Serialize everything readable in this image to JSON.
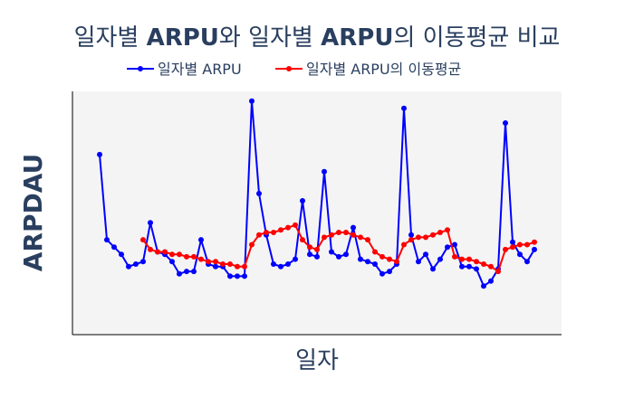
{
  "chart_data": {
    "type": "line",
    "title_parts": [
      {
        "text": "일자별 ",
        "bold": false
      },
      {
        "text": "ARPU",
        "bold": true
      },
      {
        "text": "와 일자별 ",
        "bold": false
      },
      {
        "text": "ARPU",
        "bold": true
      },
      {
        "text": "의 이동평균 비교",
        "bold": false
      }
    ],
    "xlabel": "일자",
    "ylabel": "ARPDAU",
    "grid": false,
    "legend_position": "top-center",
    "ylim": [
      0,
      100
    ],
    "series": [
      {
        "name": "일자별 ARPU",
        "color": "#0000ff",
        "x": [
          1,
          2,
          3,
          4,
          5,
          6,
          7,
          8,
          9,
          10,
          11,
          12,
          13,
          14,
          15,
          16,
          17,
          18,
          19,
          20,
          21,
          22,
          23,
          24,
          25,
          26,
          27,
          28,
          29,
          30,
          31,
          32,
          33,
          34,
          35,
          36,
          37,
          38,
          39,
          40,
          41,
          42,
          43,
          44,
          45,
          46,
          47,
          48,
          49,
          50,
          51,
          52,
          53,
          54,
          55,
          56,
          57,
          58,
          59,
          60,
          61
        ],
        "values": [
          74,
          39,
          36,
          33,
          28,
          29,
          30,
          46,
          34,
          33,
          30,
          25,
          26,
          26,
          39,
          29,
          28,
          28,
          24,
          24,
          24,
          96,
          58,
          41,
          29,
          28,
          29,
          31,
          55,
          33,
          32,
          67,
          34,
          32,
          33,
          44,
          31,
          30,
          29,
          25,
          26,
          29,
          93,
          41,
          30,
          33,
          27,
          31,
          36,
          37,
          28,
          28,
          27,
          20,
          22,
          27,
          87,
          38,
          33,
          30,
          35
        ],
        "y": [
          74,
          39,
          36,
          33,
          28,
          29,
          30,
          46,
          34,
          33,
          30,
          25,
          26,
          26,
          39,
          29,
          28,
          28,
          24,
          24,
          24,
          96,
          58,
          41,
          29,
          28,
          29,
          31,
          55,
          33,
          32,
          67,
          34,
          32,
          33,
          44,
          31,
          30,
          29,
          25,
          26,
          29,
          93,
          41,
          30,
          33,
          27,
          31,
          36,
          37,
          28,
          28,
          27,
          20,
          22,
          27,
          87,
          38,
          33,
          30,
          35
        ]
      },
      {
        "name": "일자별 ARPU의 이동평균",
        "color": "#ff0000",
        "x": [
          7,
          8,
          9,
          10,
          11,
          12,
          13,
          14,
          15,
          16,
          17,
          18,
          19,
          20,
          21,
          22,
          23,
          24,
          25,
          26,
          27,
          28,
          29,
          30,
          31,
          32,
          33,
          34,
          35,
          36,
          37,
          38,
          39,
          40,
          41,
          42,
          43,
          44,
          45,
          46,
          47,
          48,
          49,
          50,
          51,
          52,
          53,
          54,
          55,
          56,
          57,
          58,
          59,
          60,
          61
        ],
        "values": [
          39,
          35,
          34,
          34,
          33,
          33,
          32,
          32,
          31,
          30,
          30,
          29,
          29,
          28,
          28,
          37,
          41,
          42,
          42,
          43,
          44,
          45,
          39,
          36,
          35,
          40,
          41,
          42,
          42,
          41,
          40,
          39,
          34,
          32,
          31,
          30,
          37,
          39,
          40,
          40,
          41,
          42,
          43,
          32,
          31,
          31,
          30,
          29,
          28,
          26,
          35,
          36,
          37,
          37,
          38
        ],
        "y": [
          39,
          35,
          34,
          34,
          33,
          33,
          32,
          32,
          31,
          30,
          30,
          29,
          29,
          28,
          28,
          37,
          41,
          42,
          42,
          43,
          44,
          45,
          39,
          36,
          35,
          40,
          41,
          42,
          42,
          41,
          40,
          39,
          34,
          32,
          31,
          30,
          37,
          39,
          40,
          40,
          41,
          42,
          43,
          32,
          31,
          31,
          30,
          29,
          28,
          26,
          35,
          36,
          37,
          37,
          38
        ]
      }
    ]
  }
}
